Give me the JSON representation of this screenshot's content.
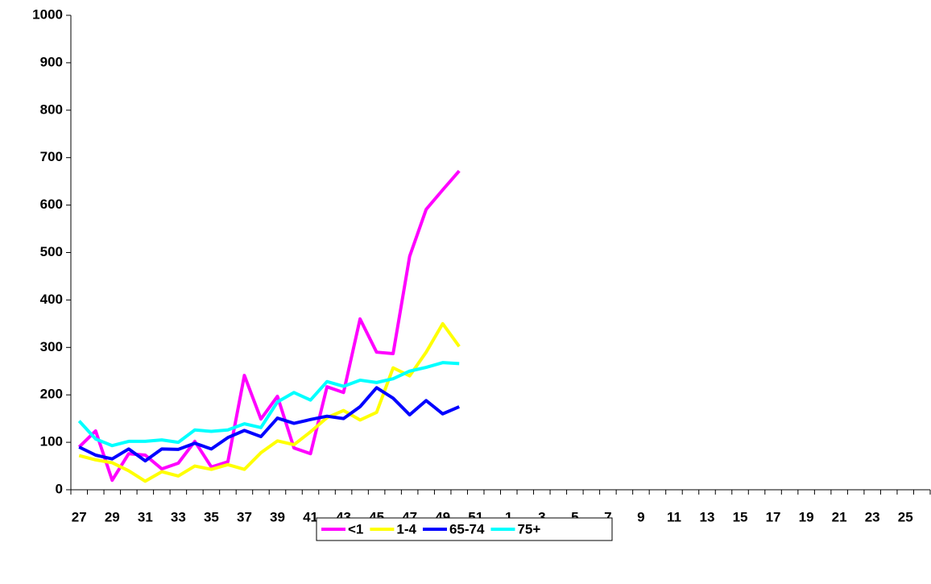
{
  "chart_data": {
    "type": "line",
    "categories": [
      "27",
      null,
      "29",
      null,
      "31",
      null,
      "33",
      null,
      "35",
      null,
      "37",
      null,
      "39",
      null,
      "41",
      null,
      "43",
      null,
      "45",
      null,
      "47",
      null,
      "49",
      null,
      "51",
      null,
      "1",
      null,
      "3",
      null,
      "5",
      null,
      "7",
      null,
      "9",
      null,
      "11",
      null,
      "13",
      null,
      "15",
      null,
      "17",
      null,
      "19",
      null,
      "21",
      null,
      "23",
      null,
      "25",
      null
    ],
    "series": [
      {
        "name": "<1",
        "color": "#ff00ff",
        "values": [
          90,
          124,
          20,
          76,
          73,
          44,
          56,
          102,
          48,
          59,
          241,
          149,
          197,
          88,
          76,
          217,
          205,
          360,
          290,
          287,
          492,
          591,
          632,
          672,
          null,
          null,
          null,
          null,
          null,
          null,
          null,
          null,
          null,
          null,
          null,
          null,
          null,
          null,
          null,
          null,
          null,
          null,
          null,
          null,
          null,
          null,
          null,
          null,
          null,
          null,
          null,
          null
        ]
      },
      {
        "name": "1-4",
        "color": "#ffff00",
        "values": [
          72,
          63,
          57,
          40,
          18,
          38,
          29,
          50,
          43,
          53,
          43,
          78,
          103,
          95,
          122,
          152,
          167,
          147,
          163,
          257,
          240,
          290,
          350,
          302,
          null,
          null,
          null,
          null,
          null,
          null,
          null,
          null,
          null,
          null,
          null,
          null,
          null,
          null,
          null,
          null,
          null,
          null,
          null,
          null,
          null,
          null,
          null,
          null,
          null,
          null,
          null,
          null
        ]
      },
      {
        "name": "65-74",
        "color": "#0000ff",
        "values": [
          90,
          73,
          65,
          86,
          61,
          86,
          85,
          98,
          86,
          110,
          125,
          112,
          151,
          140,
          148,
          155,
          150,
          175,
          215,
          193,
          158,
          188,
          160,
          175,
          null,
          null,
          null,
          null,
          null,
          null,
          null,
          null,
          null,
          null,
          null,
          null,
          null,
          null,
          null,
          null,
          null,
          null,
          null,
          null,
          null,
          null,
          null,
          null,
          null,
          null,
          null,
          null
        ]
      },
      {
        "name": "75+",
        "color": "#00ffff",
        "values": [
          145,
          107,
          93,
          102,
          102,
          105,
          100,
          126,
          123,
          126,
          139,
          131,
          185,
          205,
          189,
          228,
          218,
          231,
          226,
          234,
          250,
          258,
          268,
          266,
          null,
          null,
          null,
          null,
          null,
          null,
          null,
          null,
          null,
          null,
          null,
          null,
          null,
          null,
          null,
          null,
          null,
          null,
          null,
          null,
          null,
          null,
          null,
          null,
          null,
          null,
          null,
          null
        ]
      }
    ],
    "ylim": [
      0,
      1000
    ],
    "yticks": [
      0,
      100,
      200,
      300,
      400,
      500,
      600,
      700,
      800,
      900,
      1000
    ],
    "legend": "bottom"
  }
}
